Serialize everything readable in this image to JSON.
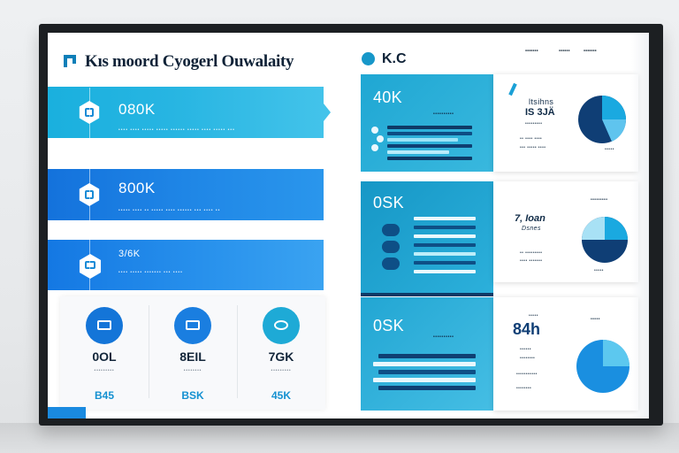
{
  "header": {
    "title": "Kıs moord Cyogerl Ouwalaity",
    "logo_text": "K.C",
    "links": [
      "•••••••",
      "••••••",
      "•••••••"
    ]
  },
  "panels": [
    {
      "value": "080K",
      "caption": "•••• •••• ••••• ••••• •••••• ••••• •••• ••••• •••"
    },
    {
      "value": "800K",
      "caption": "••••• •••• •• ••••• •••• •••••• ••• •••• ••"
    },
    {
      "value": "3/6K",
      "caption": "•••• ••••• ••••••• ••• ••••"
    }
  ],
  "stats": [
    {
      "value": "0OL",
      "caption": "•••••••••",
      "accent": "B45",
      "icon_color": "#1475d8"
    },
    {
      "value": "8EIL",
      "caption": "••••••••",
      "accent": "BSK",
      "icon_color": "#1a7ee0"
    },
    {
      "value": "7GK",
      "caption": "•••••••••",
      "accent": "45K",
      "icon_color": "#1eaad6"
    }
  ],
  "kpis": [
    {
      "value": "40K",
      "sub": "••••••••••"
    },
    {
      "value": "0SK",
      "sub": ""
    },
    {
      "value": "0SK",
      "sub": "••••••••••"
    }
  ],
  "widgets": [
    {
      "big": "IS 3JÄ",
      "line1": "ltsihns",
      "foot": "•••••",
      "pie_share": 0.25
    },
    {
      "big": "7‚ Ioan",
      "line1": "Dsnes",
      "foot": "•••••",
      "pie_share": 0.28
    },
    {
      "big": "84h",
      "line1": "•••••",
      "foot": "•••••",
      "pie_share": 0.22
    }
  ],
  "colors": {
    "navy": "#0f2a46",
    "cyan": "#1eaad6",
    "blue": "#1778df"
  }
}
